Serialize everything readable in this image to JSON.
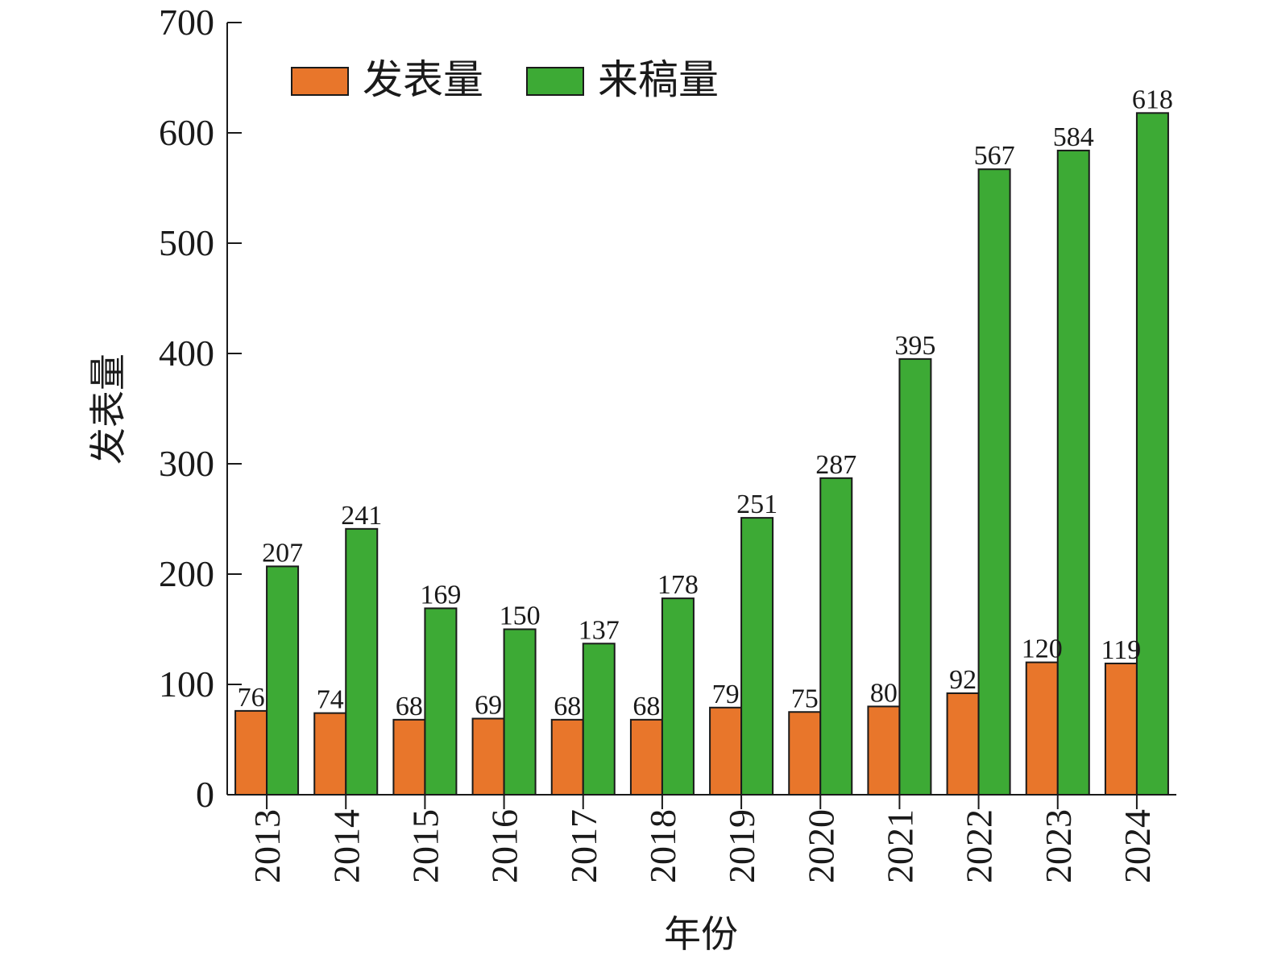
{
  "chart_data": {
    "type": "bar",
    "title": "",
    "xlabel": "年份",
    "ylabel": "发表量",
    "ylim": [
      0,
      700
    ],
    "yticks": [
      0,
      100,
      200,
      300,
      400,
      500,
      600,
      700
    ],
    "categories": [
      "2013",
      "2014",
      "2015",
      "2016",
      "2017",
      "2018",
      "2019",
      "2020",
      "2021",
      "2022",
      "2023",
      "2024"
    ],
    "series": [
      {
        "name": "发表量",
        "color": "#E8762B",
        "values": [
          76,
          74,
          68,
          69,
          68,
          68,
          79,
          75,
          80,
          92,
          120,
          119
        ]
      },
      {
        "name": "来稿量",
        "color": "#3DAA35",
        "values": [
          207,
          241,
          169,
          150,
          137,
          178,
          251,
          287,
          395,
          567,
          584,
          618
        ]
      }
    ],
    "legend_position": "top-left",
    "grid": false
  }
}
